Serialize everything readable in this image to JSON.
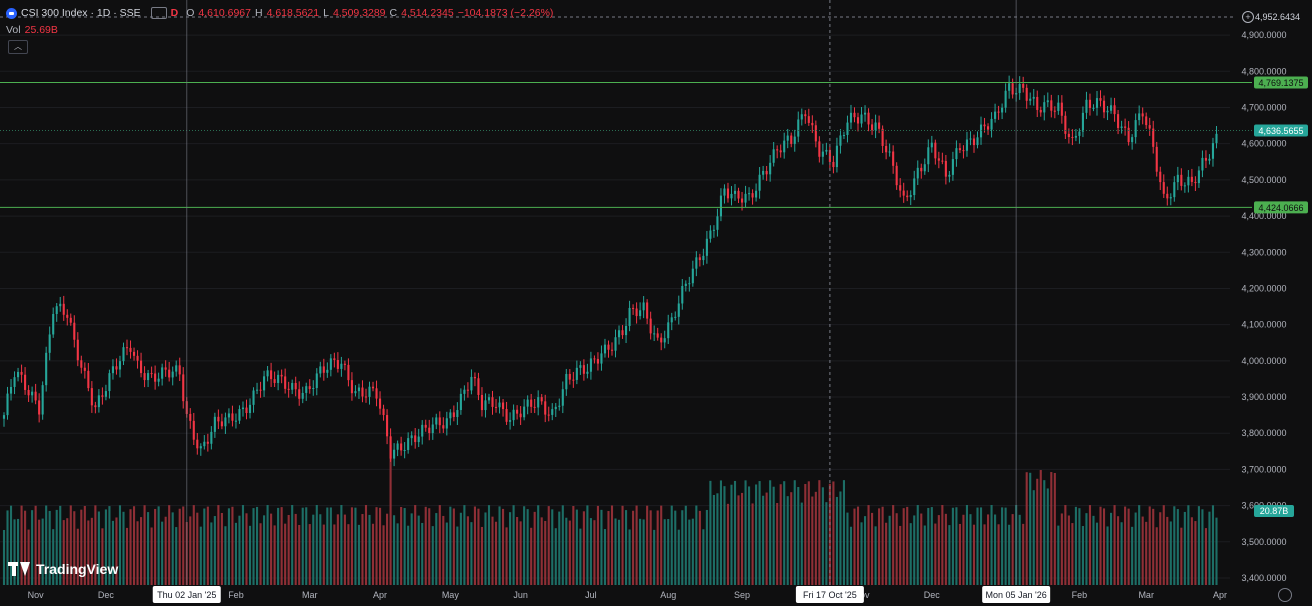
{
  "header": {
    "title": "CSI 300 Index · 1D · SSE",
    "interval_badge": "D",
    "o_label": "O",
    "o": "4,610.6967",
    "h_label": "H",
    "h": "4,618.5621",
    "l_label": "L",
    "l": "4,509.3289",
    "c_label": "C",
    "c": "4,514.2345",
    "change": "−104.1873 (−2.26%)",
    "icons": [
      "symbol-logo-icon",
      "chart-type-icon"
    ]
  },
  "volume": {
    "label": "Vol",
    "value": "25.69B",
    "badge": "20.87B"
  },
  "branding": {
    "name": "TradingView"
  },
  "colors": {
    "background": "#0f0f10",
    "up": "#26a69a",
    "down": "#f23645",
    "hline": "#4caf50",
    "text": "#b2b5be"
  },
  "crosshair": {
    "price_label": "4,952.6434",
    "date_label_1": "Thu 02 Jan '25",
    "date_label_2": "Fri 17 Oct '25",
    "date_label_3": "Mon 05 Jan '26"
  },
  "chart_data": {
    "type": "candlestick",
    "xlabel": "",
    "ylabel": "",
    "ylim": [
      3400,
      4950
    ],
    "y_ticks": [
      "4,900.0000",
      "4,800.0000",
      "4,700.0000",
      "4,600.0000",
      "4,500.0000",
      "4,400.0000",
      "4,300.0000",
      "4,200.0000",
      "4,100.0000",
      "4,000.0000",
      "3,900.0000",
      "3,800.0000",
      "3,700.0000",
      "3,600.0000",
      "3,500.0000",
      "3,400.0000"
    ],
    "y_tick_values": [
      4900,
      4800,
      4700,
      4600,
      4500,
      4400,
      4300,
      4200,
      4100,
      4000,
      3900,
      3800,
      3700,
      3600,
      3500,
      3400
    ],
    "x_ticks": [
      "Nov",
      "Dec",
      "Feb",
      "Mar",
      "Apr",
      "May",
      "Jun",
      "Jul",
      "Aug",
      "Sep",
      "Nov",
      "Dec",
      "Feb",
      "Mar",
      "Apr"
    ],
    "x_tick_index": [
      9,
      29,
      66,
      87,
      107,
      127,
      147,
      167,
      189,
      210,
      244,
      264,
      306,
      325,
      346
    ],
    "crosshair_index": [
      52,
      235,
      288
    ],
    "horizontal_levels": [
      {
        "value": 4769.1375,
        "label": "4,769.1375"
      },
      {
        "value": 4424.0666,
        "label": "4,424.0666"
      }
    ],
    "last_price": {
      "value": 4636.5655,
      "label": "4,636.5655"
    },
    "anchors": [
      [
        0,
        3850
      ],
      [
        3,
        3960
      ],
      [
        10,
        3880
      ],
      [
        14,
        4150
      ],
      [
        18,
        4120
      ],
      [
        20,
        4040
      ],
      [
        26,
        3880
      ],
      [
        30,
        3950
      ],
      [
        36,
        4040
      ],
      [
        38,
        3990
      ],
      [
        42,
        3960
      ],
      [
        50,
        3960
      ],
      [
        52,
        3850
      ],
      [
        56,
        3760
      ],
      [
        60,
        3820
      ],
      [
        64,
        3830
      ],
      [
        68,
        3870
      ],
      [
        74,
        3950
      ],
      [
        78,
        3940
      ],
      [
        82,
        3930
      ],
      [
        86,
        3920
      ],
      [
        90,
        3960
      ],
      [
        94,
        3990
      ],
      [
        96,
        4000
      ],
      [
        100,
        3920
      ],
      [
        106,
        3900
      ],
      [
        110,
        3750
      ],
      [
        114,
        3780
      ],
      [
        120,
        3800
      ],
      [
        126,
        3840
      ],
      [
        130,
        3900
      ],
      [
        133,
        3950
      ],
      [
        136,
        3870
      ],
      [
        140,
        3890
      ],
      [
        144,
        3850
      ],
      [
        148,
        3860
      ],
      [
        152,
        3880
      ],
      [
        156,
        3860
      ],
      [
        160,
        3950
      ],
      [
        166,
        3970
      ],
      [
        170,
        4030
      ],
      [
        176,
        4080
      ],
      [
        178,
        4120
      ],
      [
        182,
        4140
      ],
      [
        186,
        4060
      ],
      [
        190,
        4110
      ],
      [
        194,
        4200
      ],
      [
        198,
        4290
      ],
      [
        201,
        4360
      ],
      [
        205,
        4470
      ],
      [
        208,
        4440
      ],
      [
        212,
        4450
      ],
      [
        216,
        4530
      ],
      [
        220,
        4580
      ],
      [
        224,
        4600
      ],
      [
        228,
        4700
      ],
      [
        232,
        4590
      ],
      [
        236,
        4540
      ],
      [
        240,
        4660
      ],
      [
        244,
        4690
      ],
      [
        248,
        4650
      ],
      [
        252,
        4550
      ],
      [
        256,
        4440
      ],
      [
        260,
        4530
      ],
      [
        264,
        4590
      ],
      [
        268,
        4500
      ],
      [
        272,
        4600
      ],
      [
        276,
        4620
      ],
      [
        282,
        4660
      ],
      [
        286,
        4760
      ],
      [
        290,
        4760
      ],
      [
        294,
        4690
      ],
      [
        300,
        4700
      ],
      [
        304,
        4610
      ],
      [
        308,
        4700
      ],
      [
        312,
        4700
      ],
      [
        316,
        4690
      ],
      [
        320,
        4620
      ],
      [
        324,
        4680
      ],
      [
        327,
        4580
      ],
      [
        330,
        4450
      ],
      [
        334,
        4510
      ],
      [
        338,
        4480
      ],
      [
        342,
        4550
      ],
      [
        345,
        4620
      ]
    ],
    "count": 346
  }
}
